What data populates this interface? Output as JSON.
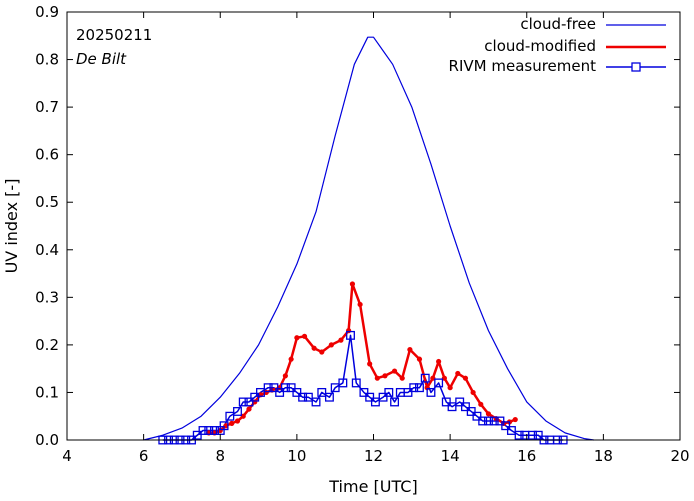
{
  "chart_data": {
    "type": "line",
    "date_label": "20250211",
    "location_label": "De Bilt",
    "xlabel": "Time  [UTC]",
    "ylabel": "UV index  [-]",
    "xlim": [
      4,
      20
    ],
    "ylim": [
      0,
      0.9
    ],
    "x_ticks": [
      4,
      6,
      8,
      10,
      12,
      14,
      16,
      18,
      20
    ],
    "y_ticks": [
      0.0,
      0.1,
      0.2,
      0.3,
      0.4,
      0.5,
      0.6,
      0.7,
      0.8,
      0.9
    ],
    "x_tick_labels": [
      "4",
      "6",
      "8",
      "10",
      "12",
      "14",
      "16",
      "18",
      "20"
    ],
    "y_tick_labels": [
      "0.0",
      "0.1",
      "0.2",
      "0.3",
      "0.4",
      "0.5",
      "0.6",
      "0.7",
      "0.8",
      "0.9"
    ],
    "legend_position": "top-right",
    "series": [
      {
        "name": "cloud-free",
        "color": "#0000dd",
        "marker": "none",
        "points": [
          [
            6.0,
            0.0
          ],
          [
            6.5,
            0.01
          ],
          [
            7.0,
            0.025
          ],
          [
            7.5,
            0.05
          ],
          [
            8.0,
            0.09
          ],
          [
            8.5,
            0.14
          ],
          [
            9.0,
            0.2
          ],
          [
            9.5,
            0.28
          ],
          [
            10.0,
            0.37
          ],
          [
            10.5,
            0.48
          ],
          [
            11.0,
            0.64
          ],
          [
            11.5,
            0.79
          ],
          [
            11.85,
            0.847
          ],
          [
            12.0,
            0.847
          ],
          [
            12.5,
            0.79
          ],
          [
            13.0,
            0.7
          ],
          [
            13.5,
            0.58
          ],
          [
            14.0,
            0.45
          ],
          [
            14.5,
            0.33
          ],
          [
            15.0,
            0.23
          ],
          [
            15.5,
            0.15
          ],
          [
            16.0,
            0.08
          ],
          [
            16.5,
            0.04
          ],
          [
            17.0,
            0.015
          ],
          [
            17.5,
            0.003
          ],
          [
            17.75,
            0.0
          ]
        ]
      },
      {
        "name": "cloud-modified",
        "color": "#ee0000",
        "marker": "dot",
        "points": [
          [
            7.7,
            0.015
          ],
          [
            7.85,
            0.015
          ],
          [
            8.0,
            0.02
          ],
          [
            8.15,
            0.03
          ],
          [
            8.3,
            0.035
          ],
          [
            8.45,
            0.04
          ],
          [
            8.6,
            0.05
          ],
          [
            8.75,
            0.065
          ],
          [
            8.9,
            0.08
          ],
          [
            9.05,
            0.095
          ],
          [
            9.2,
            0.1
          ],
          [
            9.35,
            0.105
          ],
          [
            9.55,
            0.11
          ],
          [
            9.7,
            0.135
          ],
          [
            9.85,
            0.17
          ],
          [
            10.0,
            0.215
          ],
          [
            10.2,
            0.218
          ],
          [
            10.45,
            0.193
          ],
          [
            10.65,
            0.185
          ],
          [
            10.9,
            0.2
          ],
          [
            11.15,
            0.21
          ],
          [
            11.35,
            0.23
          ],
          [
            11.45,
            0.328
          ],
          [
            11.65,
            0.285
          ],
          [
            11.9,
            0.16
          ],
          [
            12.1,
            0.13
          ],
          [
            12.3,
            0.135
          ],
          [
            12.55,
            0.145
          ],
          [
            12.75,
            0.13
          ],
          [
            12.95,
            0.19
          ],
          [
            13.2,
            0.17
          ],
          [
            13.4,
            0.11
          ],
          [
            13.55,
            0.13
          ],
          [
            13.7,
            0.165
          ],
          [
            13.85,
            0.13
          ],
          [
            14.0,
            0.11
          ],
          [
            14.2,
            0.14
          ],
          [
            14.4,
            0.13
          ],
          [
            14.6,
            0.1
          ],
          [
            14.8,
            0.075
          ],
          [
            15.0,
            0.055
          ],
          [
            15.2,
            0.045
          ],
          [
            15.4,
            0.035
          ],
          [
            15.55,
            0.038
          ],
          [
            15.7,
            0.043
          ]
        ]
      },
      {
        "name": "RIVM measurement",
        "color": "#0000dd",
        "marker": "square",
        "points": [
          [
            6.5,
            0.0
          ],
          [
            6.65,
            0.0
          ],
          [
            6.8,
            0.0
          ],
          [
            6.95,
            0.0
          ],
          [
            7.1,
            0.0
          ],
          [
            7.25,
            0.0
          ],
          [
            7.4,
            0.01
          ],
          [
            7.55,
            0.02
          ],
          [
            7.7,
            0.02
          ],
          [
            7.85,
            0.02
          ],
          [
            8.0,
            0.02
          ],
          [
            8.1,
            0.03
          ],
          [
            8.25,
            0.05
          ],
          [
            8.45,
            0.06
          ],
          [
            8.6,
            0.08
          ],
          [
            8.75,
            0.08
          ],
          [
            8.9,
            0.09
          ],
          [
            9.05,
            0.1
          ],
          [
            9.25,
            0.11
          ],
          [
            9.4,
            0.11
          ],
          [
            9.55,
            0.1
          ],
          [
            9.7,
            0.11
          ],
          [
            9.85,
            0.11
          ],
          [
            10.0,
            0.1
          ],
          [
            10.15,
            0.09
          ],
          [
            10.3,
            0.09
          ],
          [
            10.5,
            0.08
          ],
          [
            10.65,
            0.1
          ],
          [
            10.85,
            0.09
          ],
          [
            11.0,
            0.11
          ],
          [
            11.2,
            0.12
          ],
          [
            11.4,
            0.22
          ],
          [
            11.55,
            0.12
          ],
          [
            11.75,
            0.1
          ],
          [
            11.9,
            0.09
          ],
          [
            12.05,
            0.08
          ],
          [
            12.25,
            0.09
          ],
          [
            12.4,
            0.1
          ],
          [
            12.55,
            0.08
          ],
          [
            12.7,
            0.1
          ],
          [
            12.9,
            0.1
          ],
          [
            13.05,
            0.11
          ],
          [
            13.2,
            0.11
          ],
          [
            13.35,
            0.13
          ],
          [
            13.5,
            0.1
          ],
          [
            13.7,
            0.12
          ],
          [
            13.9,
            0.08
          ],
          [
            14.05,
            0.07
          ],
          [
            14.25,
            0.08
          ],
          [
            14.4,
            0.07
          ],
          [
            14.55,
            0.06
          ],
          [
            14.7,
            0.05
          ],
          [
            14.85,
            0.04
          ],
          [
            15.0,
            0.04
          ],
          [
            15.15,
            0.04
          ],
          [
            15.3,
            0.04
          ],
          [
            15.45,
            0.03
          ],
          [
            15.6,
            0.02
          ],
          [
            15.8,
            0.01
          ],
          [
            15.95,
            0.01
          ],
          [
            16.15,
            0.01
          ],
          [
            16.3,
            0.01
          ],
          [
            16.45,
            0.0
          ],
          [
            16.6,
            0.0
          ],
          [
            16.8,
            0.0
          ],
          [
            16.95,
            0.0
          ]
        ]
      }
    ]
  }
}
